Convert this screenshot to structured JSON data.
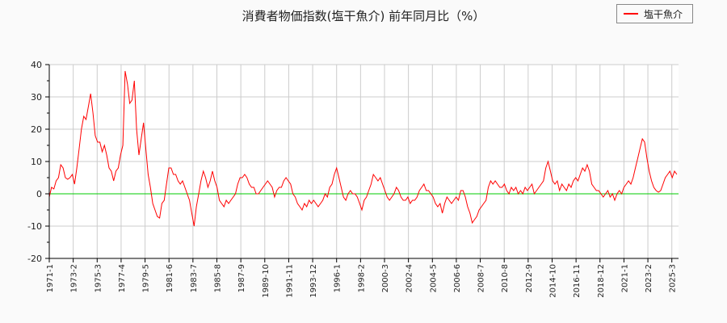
{
  "title": "消費者物価指数(塩干魚介) 前年同月比（%）",
  "legend": {
    "label": "塩干魚介",
    "color": "#ff0000"
  },
  "colors": {
    "series": "#ff0000",
    "zero_line": "#00cc00",
    "grid": "#cccccc",
    "axis": "#000000"
  },
  "chart_data": {
    "type": "line",
    "title": "消費者物価指数(塩干魚介) 前年同月比（%）",
    "xlabel": "",
    "ylabel": "",
    "ylim": [
      -20,
      40
    ],
    "yticks": [
      40,
      30,
      20,
      10,
      0,
      -10,
      -20
    ],
    "grid": true,
    "legend_position": "top-right",
    "xtick_labels": [
      "1971-1",
      "1973-2",
      "1975-3",
      "1977-4",
      "1979-5",
      "1981-6",
      "1983-7",
      "1985-8",
      "1987-9",
      "1989-10",
      "1991-11",
      "1993-12",
      "1996-1",
      "1998-2",
      "2000-3",
      "2002-4",
      "2004-5",
      "2006-6",
      "2008-7",
      "2010-8",
      "2012-9",
      "2014-10",
      "2016-11",
      "2018-12",
      "2021-1",
      "2023-2",
      "2025-3"
    ],
    "series": [
      {
        "name": "塩干魚介",
        "points_year_value": [
          [
            1971.0,
            -1
          ],
          [
            1971.2,
            2
          ],
          [
            1971.4,
            1.5
          ],
          [
            1971.6,
            4
          ],
          [
            1971.8,
            5
          ],
          [
            1972.0,
            9
          ],
          [
            1972.2,
            8
          ],
          [
            1972.4,
            5
          ],
          [
            1972.6,
            4.5
          ],
          [
            1972.8,
            5
          ],
          [
            1973.0,
            6
          ],
          [
            1973.2,
            3
          ],
          [
            1973.4,
            8
          ],
          [
            1973.6,
            14
          ],
          [
            1973.8,
            20
          ],
          [
            1974.0,
            24
          ],
          [
            1974.2,
            23
          ],
          [
            1974.4,
            27
          ],
          [
            1974.6,
            31
          ],
          [
            1974.8,
            25
          ],
          [
            1975.0,
            18
          ],
          [
            1975.2,
            16
          ],
          [
            1975.4,
            16
          ],
          [
            1975.6,
            13
          ],
          [
            1975.8,
            15
          ],
          [
            1976.0,
            12
          ],
          [
            1976.2,
            8
          ],
          [
            1976.4,
            7
          ],
          [
            1976.6,
            4
          ],
          [
            1976.8,
            7
          ],
          [
            1977.0,
            8
          ],
          [
            1977.2,
            12
          ],
          [
            1977.4,
            15
          ],
          [
            1977.6,
            38
          ],
          [
            1977.8,
            34
          ],
          [
            1978.0,
            28
          ],
          [
            1978.2,
            29
          ],
          [
            1978.4,
            35
          ],
          [
            1978.6,
            20
          ],
          [
            1978.8,
            12
          ],
          [
            1979.0,
            17
          ],
          [
            1979.2,
            22
          ],
          [
            1979.4,
            14
          ],
          [
            1979.6,
            6
          ],
          [
            1979.8,
            2
          ],
          [
            1980.0,
            -3
          ],
          [
            1980.2,
            -5
          ],
          [
            1980.4,
            -7
          ],
          [
            1980.6,
            -7.5
          ],
          [
            1980.8,
            -3
          ],
          [
            1981.0,
            -2
          ],
          [
            1981.2,
            3
          ],
          [
            1981.4,
            8
          ],
          [
            1981.6,
            8
          ],
          [
            1981.8,
            6
          ],
          [
            1982.0,
            6
          ],
          [
            1982.2,
            4
          ],
          [
            1982.4,
            3
          ],
          [
            1982.6,
            4
          ],
          [
            1982.8,
            2
          ],
          [
            1983.0,
            0
          ],
          [
            1983.2,
            -2
          ],
          [
            1983.4,
            -6
          ],
          [
            1983.6,
            -10
          ],
          [
            1983.8,
            -4
          ],
          [
            1984.0,
            0
          ],
          [
            1984.2,
            4
          ],
          [
            1984.4,
            7
          ],
          [
            1984.6,
            5
          ],
          [
            1984.8,
            2
          ],
          [
            1985.0,
            4
          ],
          [
            1985.2,
            7
          ],
          [
            1985.4,
            4
          ],
          [
            1985.6,
            2
          ],
          [
            1985.8,
            -2
          ],
          [
            1986.0,
            -3
          ],
          [
            1986.2,
            -4
          ],
          [
            1986.4,
            -2
          ],
          [
            1986.6,
            -3
          ],
          [
            1986.8,
            -2
          ],
          [
            1987.0,
            -1
          ],
          [
            1987.2,
            0
          ],
          [
            1987.4,
            3
          ],
          [
            1987.6,
            5
          ],
          [
            1987.8,
            5
          ],
          [
            1988.0,
            6
          ],
          [
            1988.2,
            5
          ],
          [
            1988.4,
            3
          ],
          [
            1988.6,
            2
          ],
          [
            1988.8,
            2
          ],
          [
            1989.0,
            0
          ],
          [
            1989.2,
            0
          ],
          [
            1989.4,
            1
          ],
          [
            1989.6,
            2
          ],
          [
            1989.8,
            3
          ],
          [
            1990.0,
            4
          ],
          [
            1990.2,
            3
          ],
          [
            1990.4,
            2
          ],
          [
            1990.6,
            -1
          ],
          [
            1990.8,
            1
          ],
          [
            1991.0,
            2
          ],
          [
            1991.2,
            2
          ],
          [
            1991.4,
            4
          ],
          [
            1991.6,
            5
          ],
          [
            1991.8,
            4
          ],
          [
            1992.0,
            3
          ],
          [
            1992.2,
            0
          ],
          [
            1992.4,
            -1
          ],
          [
            1992.6,
            -3
          ],
          [
            1992.8,
            -4
          ],
          [
            1993.0,
            -5
          ],
          [
            1993.2,
            -3
          ],
          [
            1993.4,
            -4
          ],
          [
            1993.6,
            -2
          ],
          [
            1993.8,
            -3
          ],
          [
            1994.0,
            -2
          ],
          [
            1994.2,
            -3
          ],
          [
            1994.4,
            -4
          ],
          [
            1994.6,
            -3
          ],
          [
            1994.8,
            -2
          ],
          [
            1995.0,
            0
          ],
          [
            1995.2,
            -1
          ],
          [
            1995.4,
            2
          ],
          [
            1995.6,
            3
          ],
          [
            1995.8,
            6
          ],
          [
            1996.0,
            8
          ],
          [
            1996.2,
            5
          ],
          [
            1996.4,
            2
          ],
          [
            1996.6,
            -1
          ],
          [
            1996.8,
            -2
          ],
          [
            1997.0,
            0
          ],
          [
            1997.2,
            1
          ],
          [
            1997.4,
            0
          ],
          [
            1997.6,
            0
          ],
          [
            1997.8,
            -1
          ],
          [
            1998.0,
            -3
          ],
          [
            1998.2,
            -5
          ],
          [
            1998.4,
            -2
          ],
          [
            1998.6,
            -1
          ],
          [
            1998.8,
            1
          ],
          [
            1999.0,
            3
          ],
          [
            1999.2,
            6
          ],
          [
            1999.4,
            5
          ],
          [
            1999.6,
            4
          ],
          [
            1999.8,
            5
          ],
          [
            2000.0,
            3
          ],
          [
            2000.2,
            1
          ],
          [
            2000.4,
            -1
          ],
          [
            2000.6,
            -2
          ],
          [
            2000.8,
            -1
          ],
          [
            2001.0,
            0
          ],
          [
            2001.2,
            2
          ],
          [
            2001.4,
            1
          ],
          [
            2001.6,
            -1
          ],
          [
            2001.8,
            -2
          ],
          [
            2002.0,
            -2
          ],
          [
            2002.2,
            -1
          ],
          [
            2002.4,
            -3
          ],
          [
            2002.6,
            -2
          ],
          [
            2002.8,
            -2
          ],
          [
            2003.0,
            -1
          ],
          [
            2003.2,
            1
          ],
          [
            2003.4,
            2
          ],
          [
            2003.6,
            3
          ],
          [
            2003.8,
            1
          ],
          [
            2004.0,
            1
          ],
          [
            2004.2,
            0
          ],
          [
            2004.4,
            -1
          ],
          [
            2004.6,
            -3
          ],
          [
            2004.8,
            -4
          ],
          [
            2005.0,
            -3
          ],
          [
            2005.2,
            -6
          ],
          [
            2005.4,
            -3
          ],
          [
            2005.6,
            -1
          ],
          [
            2005.8,
            -2
          ],
          [
            2006.0,
            -3
          ],
          [
            2006.2,
            -2
          ],
          [
            2006.4,
            -1
          ],
          [
            2006.6,
            -2
          ],
          [
            2006.8,
            1
          ],
          [
            2007.0,
            1
          ],
          [
            2007.2,
            -1
          ],
          [
            2007.4,
            -4
          ],
          [
            2007.6,
            -6
          ],
          [
            2007.8,
            -9
          ],
          [
            2008.0,
            -8
          ],
          [
            2008.2,
            -7
          ],
          [
            2008.4,
            -5
          ],
          [
            2008.6,
            -4
          ],
          [
            2008.8,
            -3
          ],
          [
            2009.0,
            -2
          ],
          [
            2009.2,
            2
          ],
          [
            2009.4,
            4
          ],
          [
            2009.6,
            3
          ],
          [
            2009.8,
            4
          ],
          [
            2010.0,
            3
          ],
          [
            2010.2,
            2
          ],
          [
            2010.4,
            2
          ],
          [
            2010.6,
            3
          ],
          [
            2010.8,
            1
          ],
          [
            2011.0,
            0
          ],
          [
            2011.2,
            2
          ],
          [
            2011.4,
            1
          ],
          [
            2011.6,
            2
          ],
          [
            2011.8,
            0
          ],
          [
            2012.0,
            1
          ],
          [
            2012.2,
            0
          ],
          [
            2012.4,
            2
          ],
          [
            2012.6,
            1
          ],
          [
            2012.8,
            2
          ],
          [
            2013.0,
            3
          ],
          [
            2013.2,
            0
          ],
          [
            2013.4,
            1
          ],
          [
            2013.6,
            2
          ],
          [
            2013.8,
            3
          ],
          [
            2014.0,
            4
          ],
          [
            2014.2,
            8
          ],
          [
            2014.4,
            10
          ],
          [
            2014.6,
            7
          ],
          [
            2014.8,
            4
          ],
          [
            2015.0,
            3
          ],
          [
            2015.2,
            4
          ],
          [
            2015.4,
            1
          ],
          [
            2015.6,
            3
          ],
          [
            2015.8,
            2
          ],
          [
            2016.0,
            1
          ],
          [
            2016.2,
            3
          ],
          [
            2016.4,
            2
          ],
          [
            2016.6,
            4
          ],
          [
            2016.8,
            5
          ],
          [
            2017.0,
            4
          ],
          [
            2017.2,
            6
          ],
          [
            2017.4,
            8
          ],
          [
            2017.6,
            7
          ],
          [
            2017.8,
            9
          ],
          [
            2018.0,
            7
          ],
          [
            2018.2,
            3
          ],
          [
            2018.4,
            2
          ],
          [
            2018.6,
            1
          ],
          [
            2018.8,
            1
          ],
          [
            2019.0,
            0
          ],
          [
            2019.2,
            -1
          ],
          [
            2019.4,
            0
          ],
          [
            2019.6,
            1
          ],
          [
            2019.8,
            -1
          ],
          [
            2020.0,
            0
          ],
          [
            2020.2,
            -2
          ],
          [
            2020.4,
            0
          ],
          [
            2020.6,
            1
          ],
          [
            2020.8,
            0
          ],
          [
            2021.0,
            2
          ],
          [
            2021.2,
            3
          ],
          [
            2021.4,
            4
          ],
          [
            2021.6,
            3
          ],
          [
            2021.8,
            5
          ],
          [
            2022.0,
            8
          ],
          [
            2022.2,
            11
          ],
          [
            2022.4,
            14
          ],
          [
            2022.6,
            17
          ],
          [
            2022.8,
            16
          ],
          [
            2023.0,
            11
          ],
          [
            2023.2,
            7
          ],
          [
            2023.4,
            4
          ],
          [
            2023.6,
            2
          ],
          [
            2023.8,
            1
          ],
          [
            2024.0,
            0.5
          ],
          [
            2024.2,
            1
          ],
          [
            2024.4,
            3
          ],
          [
            2024.6,
            5
          ],
          [
            2024.8,
            6
          ],
          [
            2025.0,
            7
          ],
          [
            2025.2,
            5
          ],
          [
            2025.4,
            7
          ],
          [
            2025.6,
            6
          ]
        ]
      }
    ]
  }
}
